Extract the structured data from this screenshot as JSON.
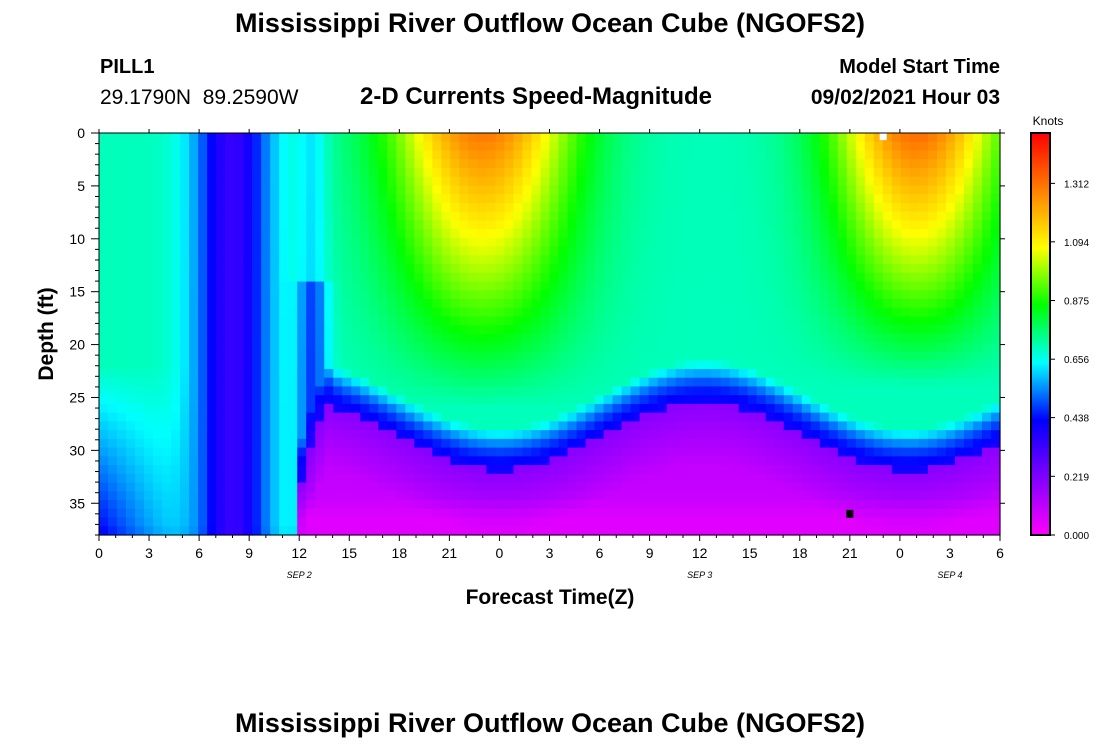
{
  "header": {
    "title": "Mississippi River Outflow Ocean Cube (NGOFS2)",
    "station_id": "PILL1",
    "station_coords": "29.1790N  89.2590W",
    "subtitle": "2-D Currents Speed-Magnitude",
    "model_start_label": "Model Start Time",
    "model_start_value": "09/02/2021 Hour 03"
  },
  "footer": {
    "title": "Mississippi River Outflow Ocean Cube (NGOFS2)"
  },
  "chart_data": {
    "type": "heatmap",
    "title": "2-D Currents Speed-Magnitude",
    "xlabel": "Forecast Time(Z)",
    "ylabel": "Depth (ft)",
    "x_range_hours": [
      0,
      54
    ],
    "x_ticks": [
      {
        "hours": 0,
        "label": "0"
      },
      {
        "hours": 3,
        "label": "3"
      },
      {
        "hours": 6,
        "label": "6"
      },
      {
        "hours": 9,
        "label": "9"
      },
      {
        "hours": 12,
        "label": "12"
      },
      {
        "hours": 15,
        "label": "15"
      },
      {
        "hours": 18,
        "label": "18"
      },
      {
        "hours": 21,
        "label": "21"
      },
      {
        "hours": 24,
        "label": "0"
      },
      {
        "hours": 27,
        "label": "3"
      },
      {
        "hours": 30,
        "label": "6"
      },
      {
        "hours": 33,
        "label": "9"
      },
      {
        "hours": 36,
        "label": "12"
      },
      {
        "hours": 39,
        "label": "15"
      },
      {
        "hours": 42,
        "label": "18"
      },
      {
        "hours": 45,
        "label": "21"
      },
      {
        "hours": 48,
        "label": "0"
      },
      {
        "hours": 51,
        "label": "3"
      },
      {
        "hours": 54,
        "label": "6"
      }
    ],
    "date_labels": [
      {
        "hours": 12,
        "label": "SEP 2"
      },
      {
        "hours": 36,
        "label": "SEP 3"
      },
      {
        "hours": 51,
        "label": "SEP 4"
      }
    ],
    "y_range": [
      0,
      38
    ],
    "y_inverted": true,
    "y_ticks": [
      0,
      5,
      10,
      15,
      20,
      25,
      30,
      35
    ],
    "colorbar": {
      "unit": "Knots",
      "range": [
        0,
        1.5
      ],
      "ticks": [
        "0.000",
        "0.219",
        "0.438",
        "0.656",
        "0.875",
        "1.094",
        "1.312"
      ],
      "tick_values": [
        0,
        0.219,
        0.438,
        0.656,
        0.875,
        1.094,
        1.312
      ],
      "stops": [
        "#ff00ff",
        "#8000ff",
        "#0000ff",
        "#00ffff",
        "#00ff00",
        "#ffff00",
        "#ff8000",
        "#ff0000"
      ]
    },
    "surface_speed_peaks_hours": [
      23,
      49
    ],
    "speed_minimum_bands_hours": [
      8,
      35
    ],
    "markers": [
      {
        "hours": 47,
        "depth": 0.3,
        "color": "#ffffff"
      },
      {
        "hours": 45,
        "depth": 36,
        "color": "#000000"
      }
    ]
  }
}
